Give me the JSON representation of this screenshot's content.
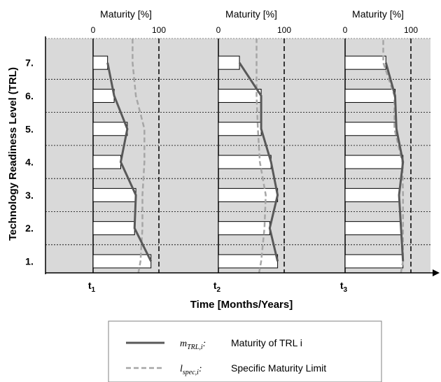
{
  "chart_data": {
    "type": "bar",
    "ylabel": "Technology Readiness Level (TRL)",
    "xlabel": "Time [Months/Years]",
    "top_axis_label": "Maturity [%]",
    "top_axis_range": [
      0,
      100
    ],
    "top_ticks": [
      "0",
      "100"
    ],
    "levels": [
      "1.",
      "2.",
      "3.",
      "4.",
      "5.",
      "6.",
      "7."
    ],
    "panels": [
      {
        "time_label": "t",
        "time_sub": "1",
        "maturity": [
          88,
          63,
          65,
          42,
          52,
          32,
          22
        ],
        "limit": [
          72,
          75,
          75,
          78,
          78,
          65,
          60
        ]
      },
      {
        "time_label": "t",
        "time_sub": "2",
        "maturity": [
          90,
          78,
          90,
          80,
          65,
          65,
          32
        ],
        "limit": [
          65,
          70,
          72,
          63,
          60,
          58,
          58
        ]
      },
      {
        "time_label": "t",
        "time_sub": "3",
        "maturity": [
          88,
          85,
          82,
          88,
          78,
          76,
          62
        ],
        "limit": [
          88,
          88,
          88,
          87,
          75,
          75,
          58
        ]
      }
    ],
    "legend": [
      {
        "symbol": "m",
        "sub": "TRL,i",
        "label": "Maturity of TRL i",
        "style": "solid"
      },
      {
        "symbol": "l",
        "sub": "spec,i",
        "label": "Specific Maturity Limit",
        "style": "dashed"
      }
    ],
    "colors": {
      "background": "#d9d9d9",
      "maturity_line": "#595959",
      "limit_line": "#a6a6a6",
      "bar_fill": "#ffffff"
    }
  }
}
